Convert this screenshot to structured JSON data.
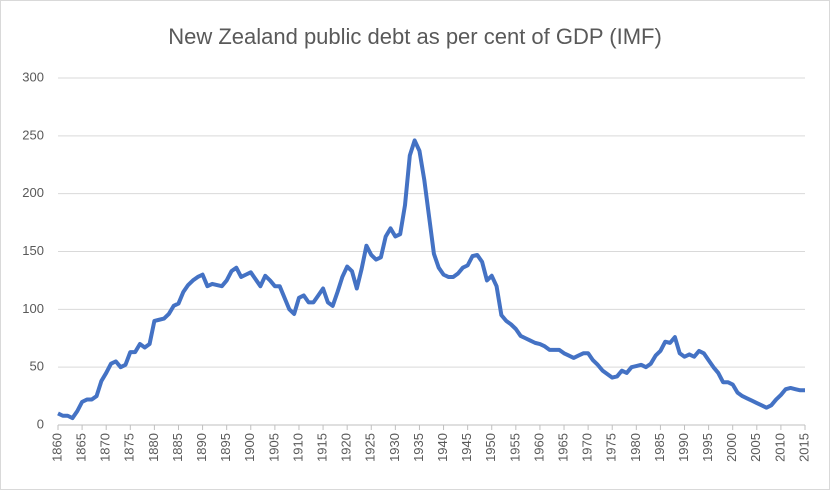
{
  "chart_data": {
    "type": "line",
    "title": "New Zealand public debt as per cent of GDP  (IMF)",
    "x": [
      1860,
      1861,
      1862,
      1863,
      1864,
      1865,
      1866,
      1867,
      1868,
      1869,
      1870,
      1871,
      1872,
      1873,
      1874,
      1875,
      1876,
      1877,
      1878,
      1879,
      1880,
      1881,
      1882,
      1883,
      1884,
      1885,
      1886,
      1887,
      1888,
      1889,
      1890,
      1891,
      1892,
      1893,
      1894,
      1895,
      1896,
      1897,
      1898,
      1899,
      1900,
      1901,
      1902,
      1903,
      1904,
      1905,
      1906,
      1907,
      1908,
      1909,
      1910,
      1911,
      1912,
      1913,
      1914,
      1915,
      1916,
      1917,
      1918,
      1919,
      1920,
      1921,
      1922,
      1923,
      1924,
      1925,
      1926,
      1927,
      1928,
      1929,
      1930,
      1931,
      1932,
      1933,
      1934,
      1935,
      1936,
      1937,
      1938,
      1939,
      1940,
      1941,
      1942,
      1943,
      1944,
      1945,
      1946,
      1947,
      1948,
      1949,
      1950,
      1951,
      1952,
      1953,
      1954,
      1955,
      1956,
      1957,
      1958,
      1959,
      1960,
      1961,
      1962,
      1963,
      1964,
      1965,
      1966,
      1967,
      1968,
      1969,
      1970,
      1971,
      1972,
      1973,
      1974,
      1975,
      1976,
      1977,
      1978,
      1979,
      1980,
      1981,
      1982,
      1983,
      1984,
      1985,
      1986,
      1987,
      1988,
      1989,
      1990,
      1991,
      1992,
      1993,
      1994,
      1995,
      1996,
      1997,
      1998,
      1999,
      2000,
      2001,
      2002,
      2003,
      2004,
      2005,
      2006,
      2007,
      2008,
      2009,
      2010,
      2011,
      2012,
      2013,
      2014,
      2015
    ],
    "series": [
      {
        "name": "Public debt",
        "color": "#4472c4",
        "values": [
          10,
          8,
          8,
          6,
          12,
          20,
          22,
          22,
          25,
          38,
          45,
          53,
          55,
          50,
          52,
          63,
          63,
          70,
          67,
          70,
          90,
          91,
          92,
          96,
          103,
          105,
          115,
          121,
          125,
          128,
          130,
          120,
          122,
          121,
          120,
          125,
          133,
          136,
          128,
          130,
          132,
          126,
          120,
          129,
          125,
          120,
          120,
          110,
          100,
          96,
          110,
          112,
          106,
          106,
          112,
          118,
          106,
          103,
          115,
          128,
          137,
          133,
          118,
          135,
          155,
          147,
          143,
          145,
          163,
          170,
          163,
          165,
          190,
          233,
          246,
          237,
          212,
          180,
          148,
          136,
          130,
          128,
          128,
          131,
          136,
          138,
          146,
          147,
          141,
          125,
          129,
          120,
          95,
          90,
          87,
          83,
          77,
          75,
          73,
          71,
          70,
          68,
          65,
          65,
          65,
          62,
          60,
          58,
          60,
          62,
          62,
          56,
          52,
          47,
          44,
          41,
          42,
          47,
          45,
          50,
          51,
          52,
          50,
          53,
          60,
          64,
          72,
          71,
          76,
          62,
          59,
          61,
          59,
          64,
          62,
          56,
          50,
          45,
          37,
          37,
          35,
          28,
          25,
          23,
          21,
          19,
          17,
          15,
          17,
          22,
          26,
          31,
          32,
          31,
          30,
          30
        ]
      }
    ],
    "xlim": [
      1860,
      2015
    ],
    "xticks": [
      1860,
      1865,
      1870,
      1875,
      1880,
      1885,
      1890,
      1895,
      1900,
      1905,
      1910,
      1915,
      1920,
      1925,
      1930,
      1935,
      1940,
      1945,
      1950,
      1955,
      1960,
      1965,
      1970,
      1975,
      1980,
      1985,
      1990,
      1995,
      2000,
      2005,
      2010,
      2015
    ],
    "ylim": [
      0,
      300
    ],
    "yticks": [
      0,
      50,
      100,
      150,
      200,
      250,
      300
    ],
    "grid": true
  }
}
